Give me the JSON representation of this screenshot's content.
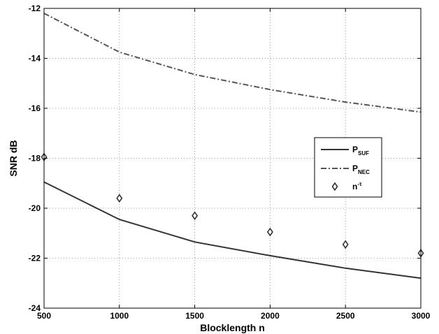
{
  "chart_data": {
    "type": "line",
    "title": "",
    "xlabel": "Blocklength n",
    "ylabel": "SNR dB",
    "xlim": [
      500,
      3000
    ],
    "ylim": [
      -24,
      -12
    ],
    "xticks": [
      500,
      1000,
      1500,
      2000,
      2500,
      3000
    ],
    "yticks": [
      -24,
      -22,
      -20,
      -18,
      -16,
      -14,
      -12
    ],
    "grid": true,
    "legend_position": "right-middle",
    "series": [
      {
        "name": "P_SUF",
        "legend_main": "P",
        "legend_sub": "SUF",
        "style": "solid",
        "color": "#333333",
        "x": [
          500,
          1000,
          1500,
          2000,
          2500,
          3000
        ],
        "y": [
          -18.95,
          -20.45,
          -21.35,
          -21.9,
          -22.4,
          -22.8
        ]
      },
      {
        "name": "P_NEC",
        "legend_main": "P",
        "legend_sub": "NEC",
        "style": "dashdot",
        "color": "#555555",
        "x": [
          500,
          1000,
          1500,
          2000,
          2500,
          3000
        ],
        "y": [
          -12.2,
          -13.75,
          -14.65,
          -15.25,
          -15.75,
          -16.15
        ]
      },
      {
        "name": "n^-τ",
        "legend_main": "n",
        "legend_sup": "-τ",
        "style": "marker-diamond",
        "color": "#333333",
        "x": [
          500,
          1000,
          1500,
          2000,
          2500,
          3000
        ],
        "y": [
          -17.95,
          -19.6,
          -20.3,
          -20.95,
          -21.45,
          -21.8
        ]
      }
    ]
  }
}
